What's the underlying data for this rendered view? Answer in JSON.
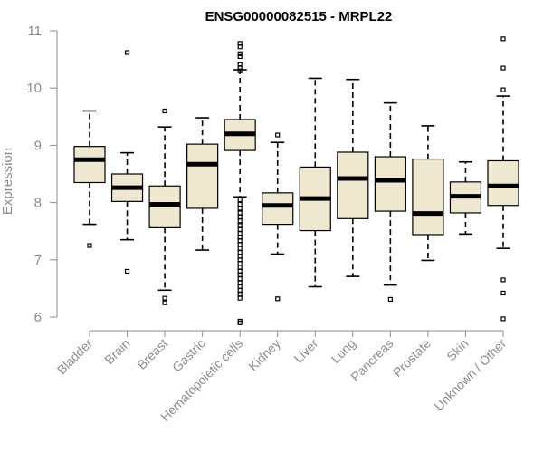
{
  "chart_data": {
    "type": "boxplot",
    "title": "ENSG00000082515 - MRPL22",
    "xlabel": "",
    "ylabel": "Expression",
    "ylim": [
      6,
      11
    ],
    "yticks": [
      "6",
      "7",
      "8",
      "9",
      "10",
      "11"
    ],
    "box_fill": "#efe8d0",
    "categories": [
      "Bladder",
      "Brain",
      "Breast",
      "Gastric",
      "Hematopoietic cells",
      "Kidney",
      "Liver",
      "Lung",
      "Pancreas",
      "Prostate",
      "Skin",
      "Unknown / Other"
    ],
    "boxes": [
      {
        "name": "Bladder",
        "whisker_low": 7.62,
        "q1": 8.35,
        "median": 8.75,
        "q3": 8.98,
        "whisker_high": 9.6,
        "outliers": [
          7.25
        ]
      },
      {
        "name": "Brain",
        "whisker_low": 7.35,
        "q1": 8.02,
        "median": 8.26,
        "q3": 8.5,
        "whisker_high": 8.87,
        "outliers": [
          10.62,
          6.8
        ]
      },
      {
        "name": "Breast",
        "whisker_low": 6.47,
        "q1": 7.56,
        "median": 7.97,
        "q3": 8.29,
        "whisker_high": 9.32,
        "outliers": [
          9.6,
          6.33,
          6.25
        ]
      },
      {
        "name": "Gastric",
        "whisker_low": 7.17,
        "q1": 7.9,
        "median": 8.67,
        "q3": 9.02,
        "whisker_high": 9.48,
        "outliers": []
      },
      {
        "name": "Hematopoietic cells",
        "whisker_low": 8.1,
        "q1": 8.91,
        "median": 9.2,
        "q3": 9.45,
        "whisker_high": 10.32,
        "outliers": [
          10.78,
          10.72,
          10.6,
          10.55,
          10.42,
          10.35,
          10.3,
          8.05,
          7.97,
          7.9,
          7.82,
          7.75,
          7.68,
          7.6,
          7.53,
          7.46,
          7.4,
          7.33,
          7.27,
          7.2,
          7.13,
          7.06,
          7.0,
          6.94,
          6.87,
          6.8,
          6.74,
          6.67,
          6.6,
          6.53,
          6.47,
          6.4,
          6.33,
          5.93,
          5.9
        ]
      },
      {
        "name": "Kidney",
        "whisker_low": 7.1,
        "q1": 7.62,
        "median": 7.95,
        "q3": 8.17,
        "whisker_high": 9.05,
        "outliers": [
          9.18,
          6.32
        ]
      },
      {
        "name": "Liver",
        "whisker_low": 6.53,
        "q1": 7.51,
        "median": 8.07,
        "q3": 8.62,
        "whisker_high": 10.17,
        "outliers": []
      },
      {
        "name": "Lung",
        "whisker_low": 6.71,
        "q1": 7.72,
        "median": 8.42,
        "q3": 8.88,
        "whisker_high": 10.15,
        "outliers": []
      },
      {
        "name": "Pancreas",
        "whisker_low": 6.56,
        "q1": 7.85,
        "median": 8.39,
        "q3": 8.8,
        "whisker_high": 9.74,
        "outliers": [
          6.31
        ]
      },
      {
        "name": "Prostate",
        "whisker_low": 6.99,
        "q1": 7.44,
        "median": 7.81,
        "q3": 8.76,
        "whisker_high": 9.34,
        "outliers": []
      },
      {
        "name": "Skin",
        "whisker_low": 7.45,
        "q1": 7.82,
        "median": 8.11,
        "q3": 8.36,
        "whisker_high": 8.71,
        "outliers": []
      },
      {
        "name": "Unknown / Other",
        "whisker_low": 7.2,
        "q1": 7.95,
        "median": 8.29,
        "q3": 8.73,
        "whisker_high": 9.86,
        "outliers": [
          10.86,
          10.35,
          9.97,
          6.65,
          6.42,
          5.97
        ]
      }
    ]
  }
}
